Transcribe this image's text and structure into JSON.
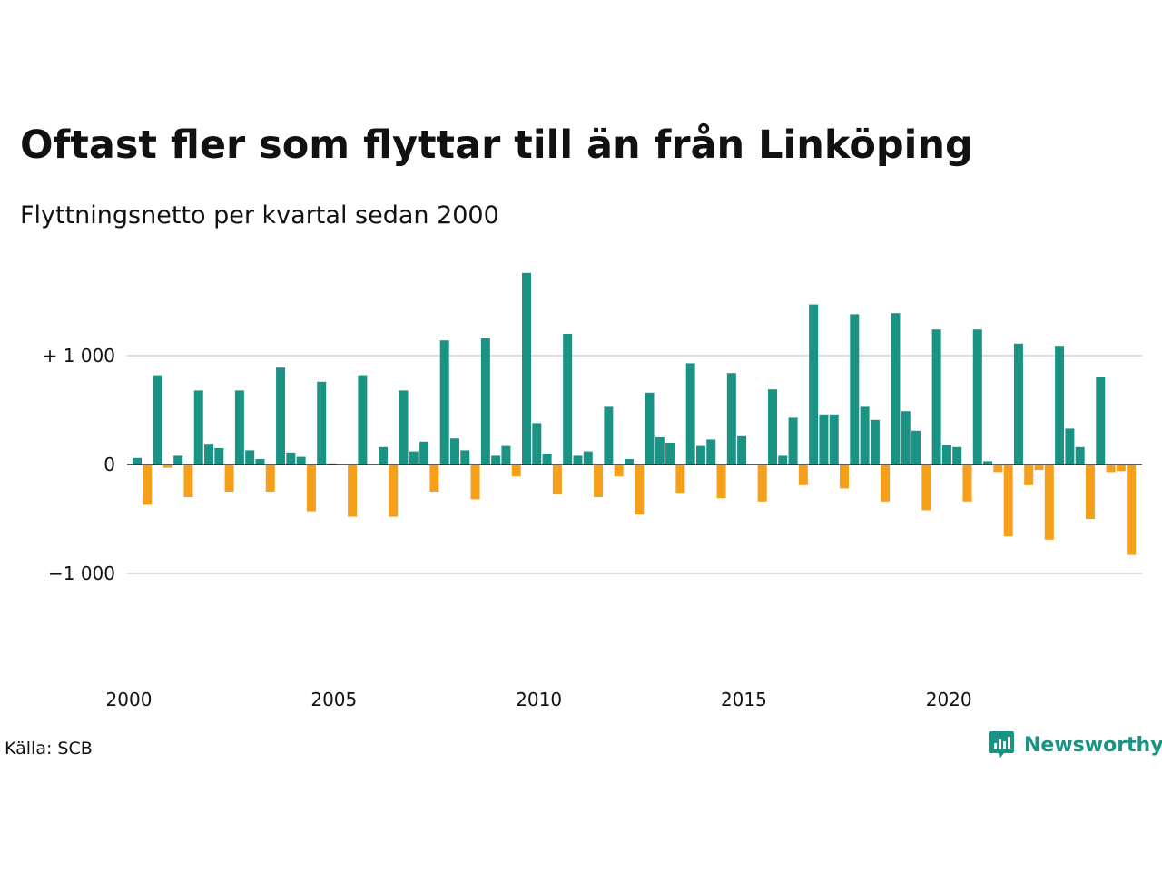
{
  "title": "Oftast fler som flyttar till än från Linköping",
  "subtitle": "Flyttningsnetto per kvartal sedan 2000",
  "source": "Källa: SCB",
  "brand": {
    "name": "Newsworthy",
    "color": "#1a9384",
    "icon": "newsworthy-logo-icon"
  },
  "colors": {
    "positive": "#1a9384",
    "negative": "#f59f1b",
    "grid": "#dddddd",
    "zero_line": "#222222"
  },
  "chart_data": {
    "type": "bar",
    "title": "Oftast fler som flyttar till än från Linköping",
    "subtitle": "Flyttningsnetto per kvartal sedan 2000",
    "xlabel": "",
    "ylabel": "",
    "x_start": 2000,
    "periods_per_year": 4,
    "xticks": [
      2000,
      2005,
      2010,
      2015,
      2020
    ],
    "xtick_labels": [
      "2000",
      "2005",
      "2010",
      "2015",
      "2020"
    ],
    "ylim": [
      -1900,
      1800
    ],
    "yticks": [
      1000,
      0,
      -1000
    ],
    "ytick_labels": [
      "+ 1 000",
      "0",
      "−1 000"
    ],
    "grid": true,
    "values": [
      60,
      -370,
      820,
      -30,
      80,
      -300,
      680,
      190,
      150,
      -250,
      680,
      130,
      50,
      -250,
      890,
      110,
      70,
      -430,
      760,
      10,
      0,
      -480,
      820,
      0,
      160,
      -480,
      680,
      120,
      210,
      -250,
      1140,
      240,
      130,
      -320,
      1160,
      80,
      170,
      -110,
      1760,
      380,
      100,
      -270,
      1200,
      80,
      120,
      -300,
      530,
      -110,
      50,
      -460,
      660,
      250,
      200,
      -260,
      930,
      170,
      230,
      -310,
      840,
      260,
      0,
      -340,
      690,
      80,
      430,
      -190,
      1470,
      460,
      460,
      -220,
      1380,
      530,
      410,
      -340,
      1390,
      490,
      310,
      -420,
      1240,
      180,
      160,
      -340,
      1240,
      30,
      -70,
      -660,
      1110,
      -190,
      -50,
      -690,
      1090,
      330,
      160,
      -500,
      800,
      -70,
      -60,
      -830
    ]
  }
}
